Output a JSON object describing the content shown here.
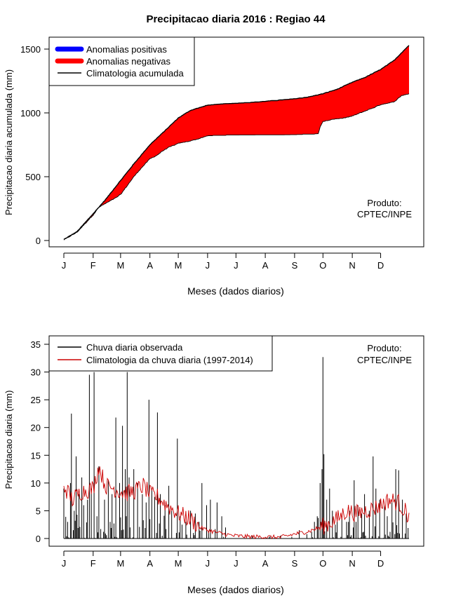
{
  "title": "Precipitacao diaria 2016 : Regiao 44",
  "colors": {
    "positive": "#0000ff",
    "negative": "#ff0000",
    "clim": "#000000",
    "obs": "#000000",
    "climdaily": "#cc0000"
  },
  "chart_data": [
    {
      "type": "area",
      "id": "accumulated",
      "ylabel": "Precipitacao diaria acumulada (mm)",
      "xlabel": "Meses (dados diarios)",
      "ylim": [
        0,
        1500
      ],
      "yticks": [
        0,
        500,
        1000,
        1500
      ],
      "xlim": [
        1,
        366
      ],
      "month_labels": [
        "J",
        "F",
        "M",
        "A",
        "M",
        "J",
        "J",
        "A",
        "S",
        "O",
        "N",
        "D"
      ],
      "month_starts": [
        1,
        32,
        61,
        92,
        122,
        153,
        183,
        214,
        245,
        275,
        306,
        336
      ],
      "legend": {
        "position": "top-left",
        "items": [
          {
            "label": "Anomalias positivas",
            "color": "#0000ff",
            "style": "thick"
          },
          {
            "label": "Anomalias negativas",
            "color": "#ff0000",
            "style": "thick"
          },
          {
            "label": "Climatologia acumulada",
            "color": "#000000",
            "style": "line"
          }
        ]
      },
      "annotation": [
        "Produto:",
        "CPTEC/INPE"
      ],
      "climatology_knots": [
        [
          1,
          8
        ],
        [
          15,
          70
        ],
        [
          32,
          210
        ],
        [
          45,
          320
        ],
        [
          61,
          470
        ],
        [
          75,
          600
        ],
        [
          92,
          750
        ],
        [
          105,
          840
        ],
        [
          122,
          960
        ],
        [
          135,
          1020
        ],
        [
          153,
          1060
        ],
        [
          170,
          1070
        ],
        [
          183,
          1075
        ],
        [
          200,
          1082
        ],
        [
          214,
          1090
        ],
        [
          230,
          1100
        ],
        [
          245,
          1110
        ],
        [
          260,
          1125
        ],
        [
          275,
          1150
        ],
        [
          290,
          1185
        ],
        [
          306,
          1240
        ],
        [
          320,
          1280
        ],
        [
          336,
          1340
        ],
        [
          350,
          1410
        ],
        [
          366,
          1530
        ]
      ],
      "observed_knots": [
        [
          1,
          5
        ],
        [
          15,
          65
        ],
        [
          32,
          200
        ],
        [
          38,
          260
        ],
        [
          45,
          290
        ],
        [
          55,
          330
        ],
        [
          61,
          360
        ],
        [
          75,
          500
        ],
        [
          82,
          560
        ],
        [
          92,
          640
        ],
        [
          100,
          670
        ],
        [
          105,
          700
        ],
        [
          112,
          730
        ],
        [
          122,
          760
        ],
        [
          135,
          780
        ],
        [
          145,
          800
        ],
        [
          153,
          820
        ],
        [
          165,
          822
        ],
        [
          183,
          825
        ],
        [
          200,
          825
        ],
        [
          214,
          825
        ],
        [
          230,
          825
        ],
        [
          245,
          828
        ],
        [
          270,
          835
        ],
        [
          272,
          890
        ],
        [
          275,
          930
        ],
        [
          285,
          950
        ],
        [
          295,
          955
        ],
        [
          306,
          975
        ],
        [
          318,
          1010
        ],
        [
          330,
          1045
        ],
        [
          336,
          1065
        ],
        [
          350,
          1085
        ],
        [
          358,
          1135
        ],
        [
          366,
          1150
        ]
      ]
    },
    {
      "type": "bar",
      "id": "daily",
      "ylabel": "Precipitacao diaria (mm)",
      "xlabel": "Meses (dados diarios)",
      "ylim": [
        0,
        35
      ],
      "yticks": [
        0,
        5,
        10,
        15,
        20,
        25,
        30,
        35
      ],
      "xlim": [
        1,
        366
      ],
      "month_labels": [
        "J",
        "F",
        "M",
        "A",
        "M",
        "J",
        "J",
        "A",
        "S",
        "O",
        "N",
        "D"
      ],
      "month_starts": [
        1,
        32,
        61,
        92,
        122,
        153,
        183,
        214,
        245,
        275,
        306,
        336
      ],
      "legend": {
        "position": "top-left",
        "items": [
          {
            "label": "Chuva diaria observada",
            "color": "#000000",
            "style": "line"
          },
          {
            "label": "Climatologia da chuva diaria (1997-2014)",
            "color": "#cc0000",
            "style": "line"
          }
        ]
      },
      "annotation": [
        "Produto:",
        "CPTEC/INPE"
      ],
      "peaks": [
        [
          1,
          9
        ],
        [
          5,
          3
        ],
        [
          8,
          10
        ],
        [
          9,
          22.5
        ],
        [
          12,
          5
        ],
        [
          14,
          14.8
        ],
        [
          17,
          8
        ],
        [
          20,
          11
        ],
        [
          22,
          6
        ],
        [
          26,
          7
        ],
        [
          28,
          29.5
        ],
        [
          30,
          9
        ],
        [
          33,
          30
        ],
        [
          36,
          4
        ],
        [
          38,
          13
        ],
        [
          44,
          7
        ],
        [
          48,
          10.5
        ],
        [
          52,
          8
        ],
        [
          56,
          21.8
        ],
        [
          60,
          10
        ],
        [
          63,
          20.3
        ],
        [
          66,
          12.5
        ],
        [
          68,
          30
        ],
        [
          70,
          11
        ],
        [
          75,
          12.5
        ],
        [
          79,
          10
        ],
        [
          84,
          8
        ],
        [
          88,
          6.5
        ],
        [
          91,
          25
        ],
        [
          94,
          9
        ],
        [
          97,
          7.5
        ],
        [
          100,
          22.7
        ],
        [
          103,
          8
        ],
        [
          108,
          6
        ],
        [
          112,
          9.5
        ],
        [
          115,
          5
        ],
        [
          121,
          18
        ],
        [
          124,
          4
        ],
        [
          130,
          3
        ],
        [
          135,
          5
        ],
        [
          140,
          4.5
        ],
        [
          147,
          10
        ],
        [
          152,
          6
        ],
        [
          156,
          7
        ],
        [
          163,
          6.5
        ],
        [
          168,
          4
        ],
        [
          172,
          2
        ],
        [
          200,
          0.6
        ],
        [
          230,
          0.5
        ],
        [
          250,
          1.5
        ],
        [
          258,
          0.8
        ],
        [
          263,
          1.2
        ],
        [
          266,
          3
        ],
        [
          269,
          4
        ],
        [
          272,
          10
        ],
        [
          274,
          12.5
        ],
        [
          275,
          32.7
        ],
        [
          276,
          15.2
        ],
        [
          279,
          7
        ],
        [
          282,
          9
        ],
        [
          285,
          5
        ],
        [
          290,
          3
        ],
        [
          295,
          4
        ],
        [
          300,
          3
        ],
        [
          303,
          5
        ],
        [
          308,
          10.5
        ],
        [
          312,
          6
        ],
        [
          316,
          4.5
        ],
        [
          319,
          8
        ],
        [
          324,
          5
        ],
        [
          328,
          14.8
        ],
        [
          331,
          9
        ],
        [
          335,
          7
        ],
        [
          340,
          6
        ],
        [
          343,
          4
        ],
        [
          348,
          6.5
        ],
        [
          352,
          12.5
        ],
        [
          355,
          12.3
        ],
        [
          359,
          7
        ],
        [
          363,
          4.5
        ]
      ],
      "climdaily_knots": [
        [
          1,
          9.5
        ],
        [
          10,
          7
        ],
        [
          20,
          8.5
        ],
        [
          32,
          9
        ],
        [
          38,
          13
        ],
        [
          45,
          9.5
        ],
        [
          52,
          9.2
        ],
        [
          60,
          8.5
        ],
        [
          68,
          8.2
        ],
        [
          75,
          8.5
        ],
        [
          85,
          9.5
        ],
        [
          92,
          8
        ],
        [
          100,
          7.5
        ],
        [
          110,
          6
        ],
        [
          122,
          4.5
        ],
        [
          135,
          3.5
        ],
        [
          145,
          2
        ],
        [
          153,
          1.5
        ],
        [
          165,
          1
        ],
        [
          180,
          0.5
        ],
        [
          200,
          0.3
        ],
        [
          214,
          0.3
        ],
        [
          230,
          0.2
        ],
        [
          245,
          0.8
        ],
        [
          260,
          1.3
        ],
        [
          275,
          2.2
        ],
        [
          290,
          3.5
        ],
        [
          300,
          5
        ],
        [
          310,
          4.5
        ],
        [
          320,
          5
        ],
        [
          330,
          5.5
        ],
        [
          336,
          6
        ],
        [
          345,
          7
        ],
        [
          355,
          6.5
        ],
        [
          366,
          4
        ]
      ]
    }
  ]
}
